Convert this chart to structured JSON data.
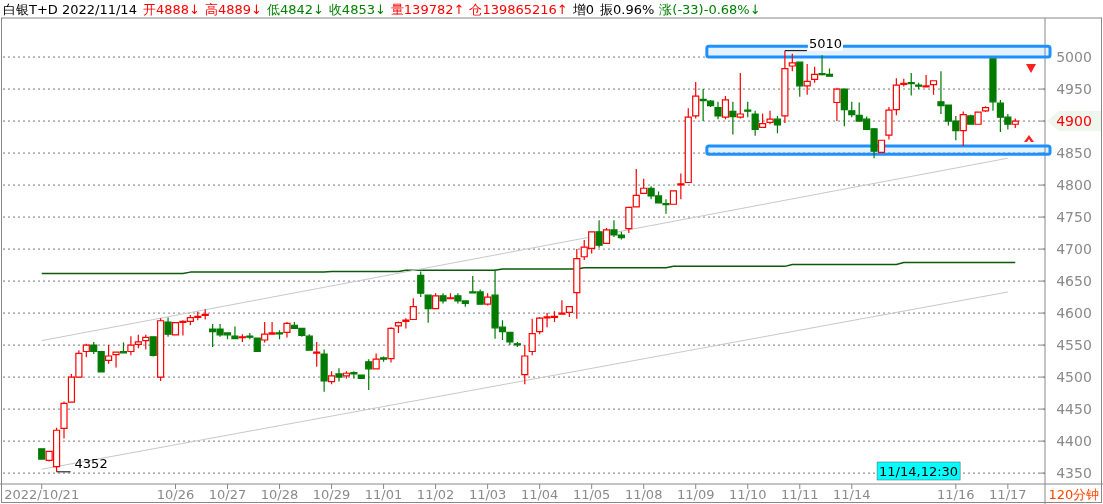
{
  "chart_data": {
    "type": "candlestick",
    "title": "白银T+D 2022/11/14",
    "categories": [
      "2022/10/21",
      null,
      null,
      null,
      null,
      null,
      null,
      null,
      null,
      null,
      null,
      null,
      null,
      null,
      null,
      null,
      null,
      null,
      "10/26",
      null,
      null,
      null,
      null,
      null,
      null,
      "10/27",
      null,
      null,
      null,
      null,
      null,
      null,
      "10/28",
      null,
      null,
      null,
      null,
      null,
      null,
      "10/29",
      null,
      null,
      null,
      null,
      null,
      null,
      "11/01",
      null,
      null,
      null,
      null,
      null,
      null,
      "11/02",
      null,
      null,
      null,
      null,
      null,
      null,
      "11/03",
      null,
      null,
      null,
      null,
      null,
      null,
      "11/04",
      null,
      null,
      null,
      null,
      null,
      null,
      "11/05",
      null,
      null,
      null,
      null,
      null,
      null,
      "11/08",
      null,
      null,
      null,
      null,
      null,
      null,
      "11/09",
      null,
      null,
      null,
      null,
      null,
      null,
      "11/10",
      null,
      null,
      null,
      null,
      null,
      null,
      "11/11",
      null,
      null,
      null,
      null,
      null,
      null,
      "11/14",
      null,
      null,
      null,
      null,
      null,
      null,
      null,
      null,
      null,
      null,
      null,
      null,
      null,
      "11/16",
      null,
      null,
      null,
      null,
      null,
      null,
      "11/17",
      null
    ],
    "ohlc": [
      [
        4388,
        4389,
        4371,
        4372
      ],
      [
        4370,
        4385,
        4368,
        4384
      ],
      [
        4360,
        4421,
        4352,
        4417
      ],
      [
        4420,
        4462,
        4404,
        4459
      ],
      [
        4461,
        4505,
        4461,
        4500
      ],
      [
        4500,
        4542,
        4500,
        4537
      ],
      [
        4540,
        4552,
        4531,
        4550
      ],
      [
        4550,
        4555,
        4536,
        4540
      ],
      [
        4540,
        4541,
        4508,
        4508
      ],
      [
        4526,
        4550,
        4521,
        4533
      ],
      [
        4535,
        4540,
        4515,
        4539
      ],
      [
        4540,
        4554,
        4537,
        4538
      ],
      [
        4540,
        4564,
        4534,
        4550
      ],
      [
        4551,
        4566,
        4545,
        4555
      ],
      [
        4557,
        4566,
        4543,
        4562
      ],
      [
        4563,
        4564,
        4532,
        4534
      ],
      [
        4500,
        4592,
        4494,
        4588
      ],
      [
        4586,
        4593,
        4563,
        4567
      ],
      [
        4566,
        4586,
        4565,
        4585
      ],
      [
        4586,
        4589,
        4565,
        4587
      ],
      [
        4587,
        4597,
        4581,
        4593
      ],
      [
        4594,
        4602,
        4589,
        4595
      ],
      [
        4597,
        4606,
        4590,
        4598
      ],
      [
        4575,
        4583,
        4547,
        4571
      ],
      [
        4575,
        4583,
        4563,
        4566
      ],
      [
        4569,
        4570,
        4559,
        4566
      ],
      [
        4564,
        4579,
        4560,
        4560
      ],
      [
        4562,
        4567,
        4555,
        4563
      ],
      [
        4564,
        4569,
        4559,
        4563
      ],
      [
        4561,
        4561,
        4540,
        4540
      ],
      [
        4558,
        4586,
        4554,
        4567
      ],
      [
        4567,
        4586,
        4566,
        4569
      ],
      [
        4569,
        4573,
        4559,
        4568
      ],
      [
        4570,
        4586,
        4562,
        4584
      ],
      [
        4581,
        4586,
        4576,
        4576
      ],
      [
        4576,
        4577,
        4563,
        4565
      ],
      [
        4564,
        4567,
        4541,
        4542
      ],
      [
        4538,
        4555,
        4516,
        4539
      ],
      [
        4536,
        4543,
        4477,
        4494
      ],
      [
        4493,
        4509,
        4489,
        4502
      ],
      [
        4505,
        4514,
        4493,
        4500
      ],
      [
        4502,
        4509,
        4498,
        4506
      ],
      [
        4507,
        4509,
        4498,
        4505
      ],
      [
        4503,
        4503,
        4498,
        4498
      ],
      [
        4524,
        4528,
        4480,
        4513
      ],
      [
        4513,
        4537,
        4513,
        4528
      ],
      [
        4530,
        4532,
        4524,
        4528
      ],
      [
        4529,
        4578,
        4523,
        4576
      ],
      [
        4580,
        4587,
        4569,
        4585
      ],
      [
        4587,
        4592,
        4576,
        4589
      ],
      [
        4590,
        4623,
        4590,
        4610
      ],
      [
        4659,
        4665,
        4625,
        4631
      ],
      [
        4628,
        4628,
        4585,
        4607
      ],
      [
        4607,
        4631,
        4607,
        4627
      ],
      [
        4627,
        4631,
        4615,
        4619
      ],
      [
        4623,
        4631,
        4623,
        4624
      ],
      [
        4627,
        4631,
        4615,
        4619
      ],
      [
        4619,
        4619,
        4610,
        4615
      ],
      [
        4633,
        4658,
        4632,
        4632
      ],
      [
        4633,
        4637,
        4614,
        4614
      ],
      [
        4614,
        4631,
        4612,
        4625
      ],
      [
        4628,
        4668,
        4560,
        4577
      ],
      [
        4578,
        4589,
        4558,
        4571
      ],
      [
        4570,
        4570,
        4550,
        4555
      ],
      [
        4552,
        4555,
        4547,
        4551
      ],
      [
        4504,
        4550,
        4489,
        4533
      ],
      [
        4540,
        4591,
        4534,
        4568
      ],
      [
        4571,
        4594,
        4567,
        4592
      ],
      [
        4593,
        4600,
        4578,
        4594
      ],
      [
        4594,
        4603,
        4586,
        4595
      ],
      [
        4599,
        4620,
        4599,
        4600
      ],
      [
        4601,
        4610,
        4594,
        4610
      ],
      [
        4632,
        4700,
        4591,
        4685
      ],
      [
        4688,
        4714,
        4683,
        4703
      ],
      [
        4701,
        4727,
        4693,
        4727
      ],
      [
        4727,
        4745,
        4702,
        4706
      ],
      [
        4709,
        4733,
        4709,
        4730
      ],
      [
        4730,
        4745,
        4719,
        4722
      ],
      [
        4722,
        4727,
        4715,
        4718
      ],
      [
        4732,
        4765,
        4725,
        4765
      ],
      [
        4766,
        4825,
        4765,
        4784
      ],
      [
        4787,
        4810,
        4787,
        4795
      ],
      [
        4795,
        4798,
        4778,
        4783
      ],
      [
        4783,
        4790,
        4772,
        4772
      ],
      [
        4771,
        4778,
        4755,
        4770
      ],
      [
        4770,
        4791,
        4770,
        4791
      ],
      [
        4801,
        4818,
        4778,
        4802
      ],
      [
        4804,
        4920,
        4804,
        4906
      ],
      [
        4908,
        4961,
        4904,
        4939
      ],
      [
        4934,
        4950,
        4900,
        4932
      ],
      [
        4931,
        4933,
        4922,
        4924
      ],
      [
        4921,
        4930,
        4903,
        4908
      ],
      [
        4906,
        4939,
        4903,
        4933
      ],
      [
        4915,
        4930,
        4879,
        4907
      ],
      [
        4906,
        4975,
        4904,
        4911
      ],
      [
        4917,
        4930,
        4906,
        4916
      ],
      [
        4911,
        4916,
        4877,
        4887
      ],
      [
        4890,
        4912,
        4889,
        4896
      ],
      [
        4898,
        4916,
        4895,
        4903
      ],
      [
        4903,
        4908,
        4881,
        4894
      ],
      [
        4908,
        5010,
        4897,
        4982
      ],
      [
        4986,
        5005,
        4978,
        4991
      ],
      [
        4992,
        4992,
        4938,
        4955
      ],
      [
        4955,
        4989,
        4941,
        4962
      ],
      [
        4965,
        4985,
        4960,
        4973
      ],
      [
        4974,
        5003,
        4971,
        4973
      ],
      [
        4973,
        4982,
        4970,
        4970
      ],
      [
        4929,
        4952,
        4900,
        4950
      ],
      [
        4950,
        4950,
        4892,
        4918
      ],
      [
        4916,
        4930,
        4906,
        4910
      ],
      [
        4909,
        4929,
        4899,
        4900
      ],
      [
        4903,
        4907,
        4887,
        4887
      ],
      [
        4888,
        4889,
        4842,
        4853
      ],
      [
        4851,
        4870,
        4851,
        4870
      ],
      [
        4878,
        4922,
        4871,
        4917
      ],
      [
        4918,
        4967,
        4909,
        4956
      ],
      [
        4958,
        4966,
        4954,
        4959
      ],
      [
        4960,
        4975,
        4940,
        4959
      ],
      [
        4956,
        4960,
        4950,
        4955
      ],
      [
        4954,
        4972,
        4954,
        4955
      ],
      [
        4957,
        4963,
        4941,
        4963
      ],
      [
        4930,
        4978,
        4911,
        4924
      ],
      [
        4925,
        4925,
        4893,
        4900
      ],
      [
        4900,
        4908,
        4870,
        4885
      ],
      [
        4885,
        4915,
        4861,
        4910
      ],
      [
        4908,
        4910,
        4895,
        4895
      ],
      [
        4895,
        4915,
        4895,
        4914
      ],
      [
        4916,
        4923,
        4914,
        4921
      ],
      [
        4997,
        4998,
        4916,
        4930
      ],
      [
        4928,
        4933,
        4883,
        4906
      ],
      [
        4906,
        4911,
        4887,
        4895
      ],
      [
        4895,
        4904,
        4889,
        4900
      ]
    ],
    "series": [
      {
        "type": "line",
        "color": "#0b5a0b",
        "values": [
          4662,
          4662,
          4662,
          4662,
          4662,
          4662,
          4662,
          4662,
          4662,
          4662,
          4662,
          4662,
          4662,
          4662,
          4662,
          4662,
          4662,
          4662,
          4662,
          4662,
          4664,
          4664,
          4664,
          4664,
          4664,
          4664,
          4664,
          4664,
          4664,
          4664,
          4664,
          4664,
          4664,
          4664,
          4664,
          4664,
          4664,
          4664,
          4664,
          4665,
          4665,
          4665,
          4665,
          4665,
          4665,
          4665,
          4665,
          4665,
          4665,
          4667,
          4667,
          4667,
          4667,
          4667,
          4667,
          4667,
          4667,
          4667,
          4667,
          4667,
          4667,
          4667,
          4669,
          4669,
          4669,
          4669,
          4669,
          4669,
          4669,
          4669,
          4669,
          4669,
          4669,
          4671,
          4671,
          4671,
          4671,
          4671,
          4671,
          4671,
          4671,
          4671,
          4671,
          4671,
          4671,
          4673,
          4673,
          4673,
          4673,
          4673,
          4673,
          4673,
          4673,
          4673,
          4673,
          4673,
          4673,
          4673,
          4673,
          4673,
          4673,
          4676,
          4676,
          4676,
          4676,
          4676,
          4676,
          4676,
          4676,
          4676,
          4676,
          4676,
          4676,
          4676,
          4676,
          4676,
          4679,
          4679,
          4679,
          4679,
          4679,
          4679,
          4679,
          4679,
          4679,
          4679,
          4679,
          4679,
          4679,
          4679,
          4679,
          4679
        ]
      },
      {
        "type": "line",
        "color": "#c8c8c8",
        "x": [
          "2022/10/21",
          "11/17"
        ],
        "values": [
          4557,
          4842
        ]
      },
      {
        "type": "line",
        "color": "#c8c8c8",
        "x": [
          "2022/10/21",
          "11/17"
        ],
        "values": [
          4356,
          4633
        ]
      }
    ],
    "ylim": [
      4333,
      5061
    ],
    "yticks": [
      4350,
      4400,
      4450,
      4500,
      4550,
      4600,
      4650,
      4700,
      4750,
      4800,
      4850,
      {
        "value": 4900,
        "label": null
      },
      4950,
      5000
    ],
    "grid": "y",
    "bands": [
      {
        "axis": "y",
        "from": 5000,
        "to": 5017,
        "color": "#1e90ff"
      },
      {
        "axis": "y",
        "from": 4848,
        "to": 4861,
        "color": "#1e90ff"
      }
    ],
    "annotations": [
      "开4888↓",
      "高4889↓",
      "低4842↓",
      "收4853↓",
      "量139782↑",
      "仓139865216↑",
      "增0",
      "振0.96%",
      "涨(-33)-0.68%↓",
      {
        "text": "5010",
        "y": 5010
      },
      "4352",
      "4900",
      "11/14,12:30",
      "120分钟"
    ]
  }
}
